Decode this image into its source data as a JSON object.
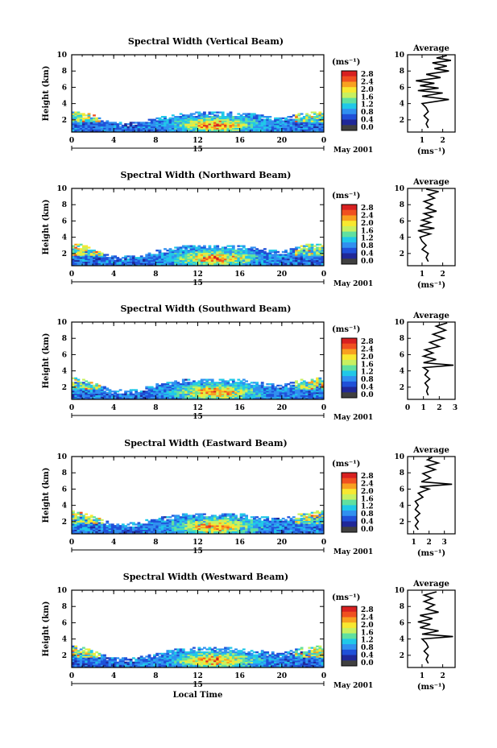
{
  "x_axis_label": "Local Time",
  "date_right": "May 2001",
  "day_label": "15",
  "y_axis_label": "Height (km)",
  "colorbar_unit": "(ms⁻¹)",
  "colorbar_ticks": [
    "2.8",
    "2.4",
    "2.0",
    "1.6",
    "1.2",
    "0.8",
    "0.4",
    "0.0"
  ],
  "colorbar_levels": [
    "#d82020",
    "#f05020",
    "#f8a020",
    "#f8e830",
    "#c8f060",
    "#60e0a0",
    "#20c8e8",
    "#3090f0",
    "#2050d8",
    "#202898",
    "#404040"
  ],
  "average_title": "Average",
  "average_unit": "(ms⁻¹)",
  "chart_data": [
    {
      "type": "heatmap",
      "title": "Spectral Width (Vertical Beam)",
      "xlabel": "",
      "ylabel": "Height (km)",
      "x_ticks": [
        "0",
        "4",
        "8",
        "12",
        "16",
        "20",
        "0"
      ],
      "xlim": [
        0,
        24
      ],
      "y_ticks": [
        "2",
        "4",
        "6",
        "8",
        "10"
      ],
      "ylim": [
        0.5,
        10
      ],
      "cloud_top_km": [
        [
          0,
          3.0
        ],
        [
          1,
          2.8
        ],
        [
          2,
          2.6
        ],
        [
          3,
          2.0
        ],
        [
          4,
          1.6
        ],
        [
          6,
          1.6
        ],
        [
          8,
          2.2
        ],
        [
          10,
          2.7
        ],
        [
          12,
          2.9
        ],
        [
          14,
          2.9
        ],
        [
          16,
          2.8
        ],
        [
          18,
          2.6
        ],
        [
          20,
          2.2
        ],
        [
          22,
          2.8
        ],
        [
          24,
          3.0
        ]
      ],
      "average": {
        "title": "Average",
        "xlabel": "(ms⁻¹)",
        "x_ticks": [
          "1",
          "2"
        ],
        "xlim": [
          0.3,
          2.6
        ],
        "profile": [
          [
            1.3,
            1.0
          ],
          [
            1.2,
            1.5
          ],
          [
            1.3,
            2.0
          ],
          [
            1.1,
            2.5
          ],
          [
            1.3,
            3.0
          ],
          [
            1.2,
            3.5
          ],
          [
            1.0,
            4.0
          ],
          [
            2.3,
            4.5
          ],
          [
            1.0,
            4.9
          ],
          [
            2.0,
            5.3
          ],
          [
            0.8,
            5.6
          ],
          [
            1.8,
            5.9
          ],
          [
            0.9,
            6.2
          ],
          [
            1.6,
            6.5
          ],
          [
            0.7,
            6.8
          ],
          [
            1.9,
            7.2
          ],
          [
            1.2,
            7.6
          ],
          [
            2.3,
            8.0
          ],
          [
            1.6,
            8.3
          ],
          [
            2.2,
            8.6
          ],
          [
            1.5,
            9.0
          ],
          [
            2.4,
            9.3
          ],
          [
            1.7,
            9.6
          ],
          [
            2.2,
            9.9
          ]
        ]
      }
    },
    {
      "type": "heatmap",
      "title": "Spectral Width (Northward Beam)",
      "xlabel": "",
      "ylabel": "Height (km)",
      "x_ticks": [
        "0",
        "4",
        "8",
        "12",
        "16",
        "20",
        "0"
      ],
      "xlim": [
        0,
        24
      ],
      "y_ticks": [
        "2",
        "4",
        "6",
        "8",
        "10"
      ],
      "ylim": [
        0.5,
        10
      ],
      "cloud_top_km": [
        [
          0,
          3.3
        ],
        [
          1,
          3.0
        ],
        [
          2,
          2.7
        ],
        [
          3,
          2.0
        ],
        [
          4,
          1.6
        ],
        [
          6,
          1.7
        ],
        [
          8,
          2.3
        ],
        [
          10,
          2.8
        ],
        [
          12,
          3.0
        ],
        [
          14,
          3.0
        ],
        [
          16,
          2.9
        ],
        [
          18,
          2.6
        ],
        [
          20,
          2.2
        ],
        [
          22,
          3.0
        ],
        [
          24,
          3.2
        ]
      ],
      "average": {
        "title": "Average",
        "xlabel": "(ms⁻¹)",
        "x_ticks": [
          "1",
          "2"
        ],
        "xlim": [
          0.3,
          2.6
        ],
        "profile": [
          [
            1.3,
            1.0
          ],
          [
            1.2,
            1.5
          ],
          [
            1.3,
            2.0
          ],
          [
            1.0,
            2.5
          ],
          [
            1.2,
            3.0
          ],
          [
            1.0,
            3.5
          ],
          [
            0.9,
            4.0
          ],
          [
            1.4,
            4.4
          ],
          [
            0.8,
            4.8
          ],
          [
            1.6,
            5.1
          ],
          [
            0.9,
            5.4
          ],
          [
            1.4,
            5.8
          ],
          [
            1.0,
            6.1
          ],
          [
            1.5,
            6.5
          ],
          [
            1.1,
            6.9
          ],
          [
            1.7,
            7.2
          ],
          [
            1.2,
            7.6
          ],
          [
            1.5,
            8.0
          ],
          [
            1.1,
            8.4
          ],
          [
            1.6,
            8.8
          ],
          [
            1.3,
            9.2
          ],
          [
            1.8,
            9.6
          ],
          [
            1.2,
            9.9
          ]
        ]
      }
    },
    {
      "type": "heatmap",
      "title": "Spectral Width (Southward Beam)",
      "xlabel": "",
      "ylabel": "Height (km)",
      "x_ticks": [
        "0",
        "4",
        "8",
        "12",
        "16",
        "20",
        "0"
      ],
      "xlim": [
        0,
        24
      ],
      "y_ticks": [
        "2",
        "4",
        "6",
        "8",
        "10"
      ],
      "ylim": [
        0.5,
        10
      ],
      "cloud_top_km": [
        [
          0,
          3.1
        ],
        [
          1,
          2.9
        ],
        [
          2,
          2.6
        ],
        [
          3,
          2.0
        ],
        [
          4,
          1.6
        ],
        [
          6,
          1.6
        ],
        [
          8,
          2.3
        ],
        [
          10,
          2.8
        ],
        [
          12,
          3.0
        ],
        [
          14,
          3.0
        ],
        [
          16,
          2.9
        ],
        [
          18,
          2.6
        ],
        [
          20,
          2.2
        ],
        [
          22,
          2.9
        ],
        [
          24,
          3.2
        ]
      ],
      "average": {
        "title": "Average",
        "xlabel": "",
        "x_ticks": [
          "0",
          "1",
          "2",
          "3"
        ],
        "xlim": [
          0,
          3
        ],
        "profile": [
          [
            1.3,
            1.0
          ],
          [
            1.2,
            1.5
          ],
          [
            1.3,
            2.0
          ],
          [
            1.1,
            2.5
          ],
          [
            1.4,
            3.0
          ],
          [
            1.1,
            3.5
          ],
          [
            1.3,
            4.0
          ],
          [
            1.0,
            4.4
          ],
          [
            2.9,
            4.7
          ],
          [
            1.0,
            5.0
          ],
          [
            1.8,
            5.4
          ],
          [
            1.0,
            5.8
          ],
          [
            1.6,
            6.2
          ],
          [
            1.1,
            6.6
          ],
          [
            2.0,
            7.0
          ],
          [
            1.4,
            7.5
          ],
          [
            2.3,
            8.0
          ],
          [
            1.6,
            8.5
          ],
          [
            2.4,
            9.0
          ],
          [
            1.8,
            9.5
          ],
          [
            2.5,
            9.9
          ]
        ]
      }
    },
    {
      "type": "heatmap",
      "title": "Spectral Width (Eastward Beam)",
      "xlabel": "",
      "ylabel": "Height (km)",
      "x_ticks": [
        "0",
        "4",
        "8",
        "12",
        "16",
        "20",
        "0"
      ],
      "xlim": [
        0,
        24
      ],
      "y_ticks": [
        "2",
        "4",
        "6",
        "8",
        "10"
      ],
      "ylim": [
        0.5,
        10
      ],
      "cloud_top_km": [
        [
          0,
          3.3
        ],
        [
          1,
          3.0
        ],
        [
          2,
          2.7
        ],
        [
          3,
          2.1
        ],
        [
          4,
          1.7
        ],
        [
          6,
          1.8
        ],
        [
          8,
          2.4
        ],
        [
          10,
          2.8
        ],
        [
          12,
          3.0
        ],
        [
          14,
          3.0
        ],
        [
          16,
          2.9
        ],
        [
          18,
          2.6
        ],
        [
          20,
          2.3
        ],
        [
          22,
          3.0
        ],
        [
          24,
          3.3
        ]
      ],
      "average": {
        "title": "Average",
        "xlabel": "(ms⁻¹)",
        "x_ticks": [
          "1",
          "2",
          "3"
        ],
        "xlim": [
          0.6,
          3.7
        ],
        "profile": [
          [
            1.3,
            1.0
          ],
          [
            1.1,
            1.5
          ],
          [
            1.3,
            2.0
          ],
          [
            1.1,
            2.5
          ],
          [
            1.4,
            3.0
          ],
          [
            1.1,
            3.5
          ],
          [
            1.3,
            4.0
          ],
          [
            1.1,
            4.5
          ],
          [
            1.6,
            5.0
          ],
          [
            1.3,
            5.5
          ],
          [
            2.0,
            6.0
          ],
          [
            1.4,
            6.3
          ],
          [
            3.5,
            6.6
          ],
          [
            1.5,
            6.9
          ],
          [
            2.1,
            7.4
          ],
          [
            1.6,
            7.9
          ],
          [
            2.4,
            8.4
          ],
          [
            1.8,
            8.8
          ],
          [
            2.6,
            9.2
          ],
          [
            1.9,
            9.6
          ],
          [
            2.2,
            9.9
          ]
        ]
      }
    },
    {
      "type": "heatmap",
      "title": "Spectral Width (Westward Beam)",
      "xlabel": "Local Time",
      "ylabel": "Height (km)",
      "x_ticks": [
        "0",
        "4",
        "8",
        "12",
        "16",
        "20",
        "0"
      ],
      "xlim": [
        0,
        24
      ],
      "y_ticks": [
        "2",
        "4",
        "6",
        "8",
        "10"
      ],
      "ylim": [
        0.5,
        10
      ],
      "cloud_top_km": [
        [
          0,
          3.2
        ],
        [
          1,
          2.9
        ],
        [
          2,
          2.6
        ],
        [
          3,
          2.0
        ],
        [
          4,
          1.6
        ],
        [
          6,
          1.6
        ],
        [
          8,
          2.2
        ],
        [
          10,
          2.7
        ],
        [
          12,
          2.9
        ],
        [
          14,
          2.9
        ],
        [
          16,
          2.8
        ],
        [
          18,
          2.5
        ],
        [
          20,
          2.2
        ],
        [
          22,
          2.9
        ],
        [
          24,
          3.1
        ]
      ],
      "average": {
        "title": "Average",
        "xlabel": "(ms⁻¹)",
        "x_ticks": [
          "1",
          "2"
        ],
        "xlim": [
          0.3,
          2.6
        ],
        "profile": [
          [
            1.3,
            1.0
          ],
          [
            1.2,
            1.5
          ],
          [
            1.3,
            2.0
          ],
          [
            1.1,
            2.5
          ],
          [
            1.3,
            3.0
          ],
          [
            1.2,
            3.5
          ],
          [
            1.0,
            4.0
          ],
          [
            2.5,
            4.3
          ],
          [
            1.0,
            4.6
          ],
          [
            1.8,
            5.0
          ],
          [
            0.9,
            5.4
          ],
          [
            1.4,
            5.8
          ],
          [
            0.8,
            6.1
          ],
          [
            1.5,
            6.5
          ],
          [
            0.9,
            6.9
          ],
          [
            1.8,
            7.3
          ],
          [
            1.2,
            7.7
          ],
          [
            1.6,
            8.2
          ],
          [
            1.1,
            8.6
          ],
          [
            1.5,
            9.0
          ],
          [
            1.1,
            9.4
          ],
          [
            1.7,
            9.8
          ]
        ]
      }
    }
  ]
}
